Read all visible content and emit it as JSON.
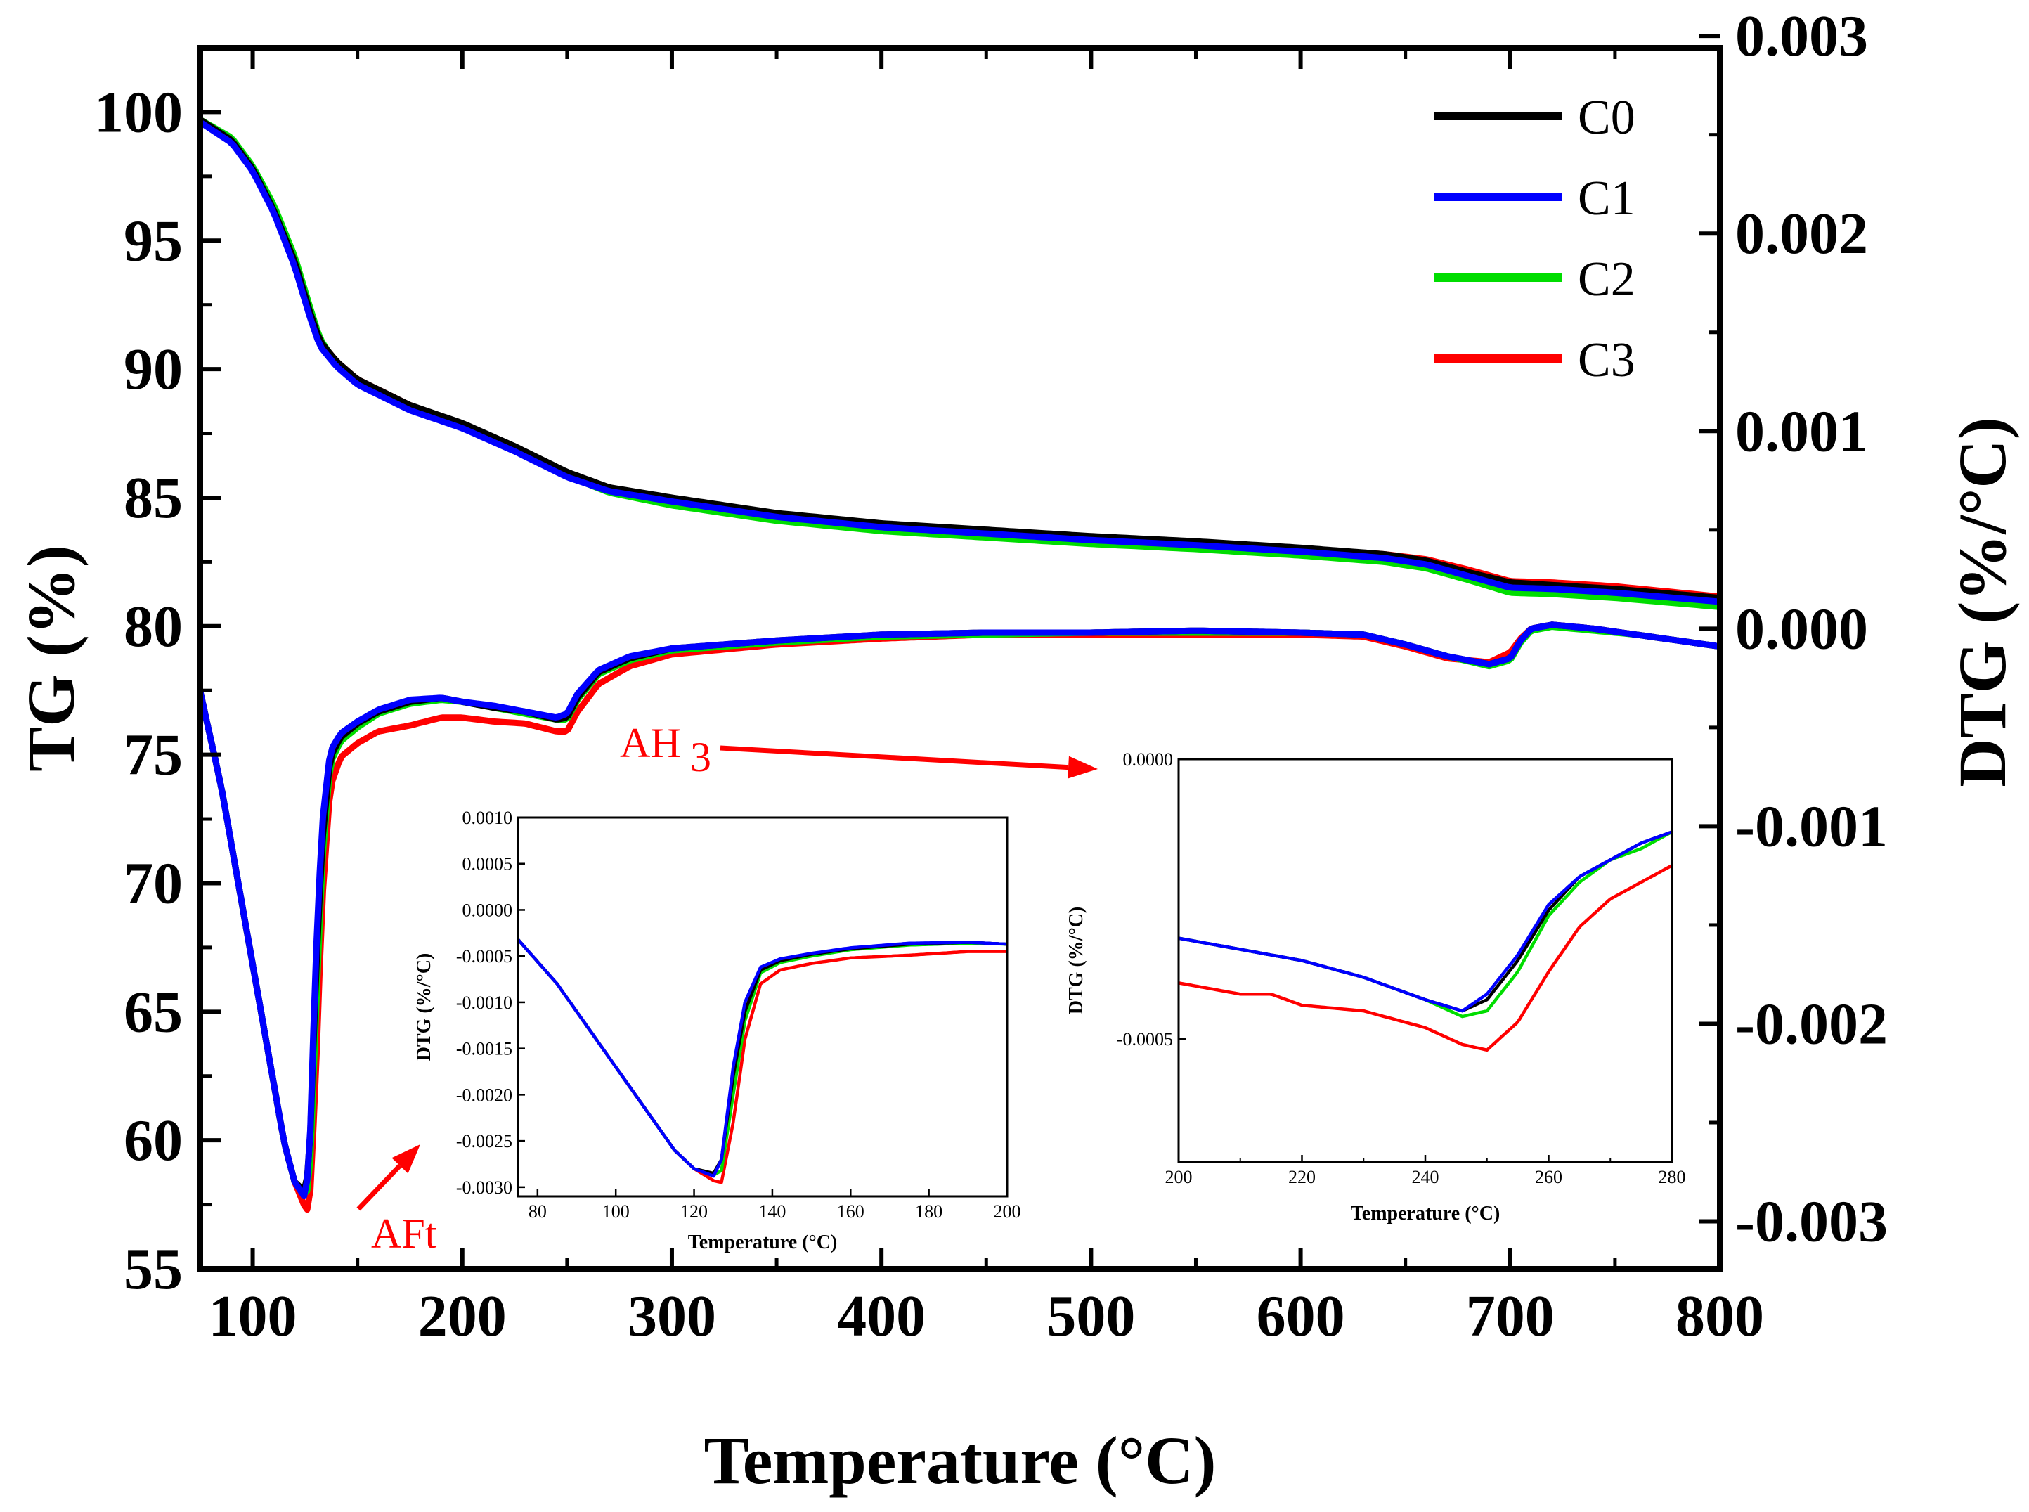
{
  "chart_data": [
    {
      "type": "line",
      "name": "main",
      "xlabel": "Temperature (°C)",
      "ylabel": "TG (%)",
      "y2label": "DTG (%/°C)",
      "xlim": [
        75,
        800
      ],
      "ylim": [
        55,
        102.5
      ],
      "y2lim": [
        -0.00324,
        0.00294
      ],
      "xticks": [
        100,
        200,
        300,
        400,
        500,
        600,
        700,
        800
      ],
      "yticks": [
        55,
        60,
        65,
        70,
        75,
        80,
        85,
        90,
        95,
        100
      ],
      "y2ticks": [
        -0.003,
        -0.002,
        -0.001,
        0.0,
        0.001,
        0.002,
        0.003
      ],
      "y2ticklabels": [
        "-0.003",
        "-0.002",
        "-0.001",
        "0.000",
        "0.001",
        "0.002",
        "0.003"
      ],
      "legend": {
        "position": "top-right",
        "entries": [
          "C0",
          "C1",
          "C2",
          "C3"
        ]
      },
      "colors": {
        "C0": "#000000",
        "C1": "#0000ff",
        "C2": "#00dd00",
        "C3": "#ff0000"
      },
      "annotations": [
        {
          "text": "AFt",
          "points_to_x": 180,
          "points_to_y_dtg": -0.0025
        },
        {
          "text": "AH",
          "subscript": "3",
          "points_to_inset": "right"
        }
      ],
      "tg_series": [
        {
          "name": "C0",
          "x": [
            75,
            90,
            100,
            110,
            120,
            127,
            132,
            140,
            150,
            175,
            200,
            225,
            250,
            270,
            300,
            350,
            400,
            450,
            500,
            550,
            600,
            640,
            660,
            680,
            700,
            720,
            750,
            800
          ],
          "values": [
            99.7,
            98.9,
            97.8,
            96.2,
            94.2,
            92.3,
            91.1,
            90.3,
            89.6,
            88.6,
            87.9,
            87.0,
            86.0,
            85.4,
            85.0,
            84.4,
            84.0,
            83.75,
            83.5,
            83.3,
            83.05,
            82.8,
            82.55,
            82.1,
            81.7,
            81.6,
            81.45,
            81.1
          ]
        },
        {
          "name": "C1",
          "x": [
            75,
            90,
            100,
            110,
            120,
            127,
            132,
            140,
            150,
            175,
            200,
            225,
            250,
            270,
            300,
            350,
            400,
            450,
            500,
            550,
            600,
            640,
            660,
            680,
            700,
            720,
            750,
            800
          ],
          "values": [
            99.6,
            98.8,
            97.7,
            96.1,
            94.0,
            92.1,
            90.9,
            90.1,
            89.4,
            88.4,
            87.7,
            86.8,
            85.8,
            85.25,
            84.85,
            84.25,
            83.85,
            83.6,
            83.35,
            83.15,
            82.9,
            82.65,
            82.4,
            81.95,
            81.5,
            81.45,
            81.3,
            80.95
          ]
        },
        {
          "name": "C2",
          "x": [
            75,
            90,
            100,
            110,
            120,
            127,
            132,
            140,
            150,
            175,
            200,
            225,
            250,
            270,
            300,
            350,
            400,
            450,
            500,
            550,
            600,
            640,
            660,
            680,
            700,
            720,
            750,
            800
          ],
          "values": [
            99.7,
            99.0,
            97.9,
            96.4,
            94.4,
            92.5,
            91.2,
            90.2,
            89.5,
            88.5,
            87.8,
            86.9,
            85.85,
            85.2,
            84.7,
            84.1,
            83.7,
            83.45,
            83.2,
            83.0,
            82.75,
            82.5,
            82.25,
            81.8,
            81.3,
            81.25,
            81.1,
            80.75
          ]
        },
        {
          "name": "C3",
          "x": [
            75,
            90,
            100,
            110,
            120,
            127,
            132,
            140,
            150,
            175,
            200,
            225,
            250,
            270,
            300,
            350,
            400,
            450,
            500,
            550,
            600,
            640,
            660,
            680,
            700,
            720,
            750,
            800
          ],
          "values": [
            99.7,
            98.9,
            97.8,
            96.2,
            94.2,
            92.3,
            91.1,
            90.3,
            89.6,
            88.6,
            87.85,
            86.95,
            85.95,
            85.35,
            84.95,
            84.35,
            83.95,
            83.7,
            83.45,
            83.25,
            83.0,
            82.8,
            82.6,
            82.2,
            81.75,
            81.7,
            81.55,
            81.15
          ]
        }
      ],
      "dtg_series": [
        {
          "name": "C0",
          "x": [
            75,
            85,
            95,
            105,
            110,
            115,
            120,
            125,
            127,
            130,
            133,
            137,
            142,
            150,
            160,
            175,
            190,
            200,
            215,
            230,
            245,
            250,
            255,
            265,
            280,
            300,
            350,
            400,
            450,
            500,
            550,
            600,
            630,
            650,
            670,
            690,
            700,
            705,
            710,
            720,
            740,
            760,
            780,
            800
          ],
          "values": [
            -0.00032,
            -0.0008,
            -0.0014,
            -0.002,
            -0.0023,
            -0.0026,
            -0.0028,
            -0.00285,
            -0.0027,
            -0.0018,
            -0.0011,
            -0.00065,
            -0.00055,
            -0.00048,
            -0.00042,
            -0.00037,
            -0.00035,
            -0.00037,
            -0.0004,
            -0.00042,
            -0.00046,
            -0.00045,
            -0.00035,
            -0.00022,
            -0.00015,
            -0.0001,
            -6e-05,
            -3e-05,
            -2e-05,
            -2e-05,
            -1e-05,
            -2e-05,
            -3e-05,
            -8e-05,
            -0.00014,
            -0.00018,
            -0.00015,
            -6e-05,
            0.0,
            2e-05,
            0.0,
            -3e-05,
            -6e-05,
            -9e-05
          ]
        },
        {
          "name": "C1",
          "x": [
            75,
            85,
            95,
            105,
            110,
            115,
            120,
            125,
            127,
            130,
            133,
            137,
            142,
            150,
            160,
            175,
            190,
            200,
            215,
            230,
            245,
            250,
            255,
            265,
            280,
            300,
            350,
            400,
            450,
            500,
            550,
            600,
            630,
            650,
            670,
            690,
            700,
            705,
            710,
            720,
            740,
            760,
            780,
            800
          ],
          "values": [
            -0.00032,
            -0.0008,
            -0.0014,
            -0.002,
            -0.0023,
            -0.0026,
            -0.0028,
            -0.00288,
            -0.0027,
            -0.0017,
            -0.001,
            -0.00062,
            -0.00053,
            -0.00047,
            -0.00041,
            -0.00036,
            -0.00035,
            -0.00037,
            -0.00039,
            -0.00042,
            -0.00045,
            -0.00043,
            -0.00033,
            -0.00021,
            -0.00014,
            -0.0001,
            -6e-05,
            -3e-05,
            -2e-05,
            -2e-05,
            -1e-05,
            -2e-05,
            -3e-05,
            -8e-05,
            -0.00014,
            -0.00018,
            -0.00015,
            -6e-05,
            0.0,
            2e-05,
            0.0,
            -3e-05,
            -6e-05,
            -9e-05
          ]
        },
        {
          "name": "C2",
          "x": [
            75,
            85,
            95,
            105,
            110,
            115,
            120,
            125,
            127,
            130,
            133,
            137,
            142,
            150,
            160,
            175,
            190,
            200,
            215,
            230,
            245,
            250,
            255,
            265,
            280,
            300,
            350,
            400,
            450,
            500,
            550,
            600,
            630,
            650,
            670,
            690,
            700,
            705,
            710,
            720,
            740,
            760,
            780,
            800
          ],
          "values": [
            -0.00032,
            -0.0008,
            -0.0014,
            -0.002,
            -0.0023,
            -0.0026,
            -0.0028,
            -0.00287,
            -0.00282,
            -0.002,
            -0.0012,
            -0.00068,
            -0.00057,
            -0.0005,
            -0.00043,
            -0.00038,
            -0.00036,
            -0.00037,
            -0.0004,
            -0.00043,
            -0.00046,
            -0.00046,
            -0.00036,
            -0.00023,
            -0.00016,
            -0.00011,
            -7e-05,
            -4e-05,
            -3e-05,
            -2e-05,
            -2e-05,
            -2e-05,
            -3e-05,
            -8e-05,
            -0.00014,
            -0.00019,
            -0.00016,
            -7e-05,
            -1e-05,
            1e-05,
            -1e-05,
            -3e-05,
            -6e-05,
            -9e-05
          ]
        },
        {
          "name": "C3",
          "x": [
            75,
            85,
            95,
            105,
            110,
            115,
            120,
            125,
            127,
            130,
            133,
            137,
            142,
            150,
            160,
            175,
            190,
            200,
            215,
            230,
            245,
            250,
            255,
            265,
            280,
            300,
            350,
            400,
            450,
            500,
            550,
            600,
            630,
            650,
            670,
            690,
            700,
            705,
            710,
            720,
            740,
            760,
            780,
            800
          ],
          "values": [
            -0.00032,
            -0.0008,
            -0.0014,
            -0.002,
            -0.0023,
            -0.0026,
            -0.0028,
            -0.00293,
            -0.00295,
            -0.0023,
            -0.0014,
            -0.0008,
            -0.00065,
            -0.00058,
            -0.00052,
            -0.00049,
            -0.00045,
            -0.00045,
            -0.00047,
            -0.00048,
            -0.00052,
            -0.00052,
            -0.00042,
            -0.00028,
            -0.00019,
            -0.00013,
            -8e-05,
            -5e-05,
            -3e-05,
            -3e-05,
            -3e-05,
            -3e-05,
            -4e-05,
            -9e-05,
            -0.00015,
            -0.00017,
            -0.00012,
            -5e-05,
            0.0,
            2e-05,
            0.0,
            -3e-05,
            -6e-05,
            -9e-05
          ]
        }
      ]
    },
    {
      "type": "line",
      "name": "inset-1",
      "xlabel": "Temperature (°C)",
      "ylabel": "DTG (%/°C)",
      "xlim": [
        75,
        200
      ],
      "ylim": [
        -0.0031,
        0.001
      ],
      "xticks": [
        80,
        100,
        120,
        140,
        160,
        180,
        200
      ],
      "yticks": [
        0.001,
        0.0005,
        0.0,
        -0.0005,
        -0.001,
        -0.0015,
        -0.002,
        -0.0025,
        -0.003
      ],
      "yticklabels": [
        "0.0010",
        "0.0005",
        "0.0000",
        "-0.0005",
        "-0.0010",
        "-0.0015",
        "-0.0020",
        "-0.0025",
        "-0.0030"
      ],
      "zoom_of": "main dtg_series 75–200 °C"
    },
    {
      "type": "line",
      "name": "inset-2",
      "xlabel": "Temperature (°C)",
      "ylabel": "DTG (%/°C)",
      "xlim": [
        200,
        280
      ],
      "ylim": [
        -0.00072,
        0.0
      ],
      "xticks": [
        200,
        220,
        240,
        260,
        280
      ],
      "yticks": [
        0.0,
        -0.0005
      ],
      "yticklabels": [
        "0.0000",
        "-0.0005"
      ],
      "series": [
        {
          "name": "C0",
          "x": [
            200,
            210,
            220,
            230,
            240,
            246,
            250,
            255,
            260,
            265,
            270,
            275,
            280
          ],
          "values": [
            -0.00032,
            -0.00034,
            -0.00036,
            -0.00039,
            -0.00043,
            -0.00045,
            -0.00043,
            -0.00036,
            -0.00027,
            -0.00021,
            -0.00018,
            -0.00015,
            -0.00013
          ]
        },
        {
          "name": "C1",
          "x": [
            200,
            210,
            220,
            230,
            240,
            246,
            250,
            255,
            260,
            265,
            270,
            275,
            280
          ],
          "values": [
            -0.00032,
            -0.00034,
            -0.00036,
            -0.00039,
            -0.00043,
            -0.00045,
            -0.00042,
            -0.00035,
            -0.00026,
            -0.00021,
            -0.00018,
            -0.00015,
            -0.00013
          ]
        },
        {
          "name": "C2",
          "x": [
            200,
            210,
            220,
            230,
            240,
            246,
            250,
            255,
            260,
            265,
            270,
            275,
            280
          ],
          "values": [
            -0.00032,
            -0.00034,
            -0.00036,
            -0.00039,
            -0.00043,
            -0.00046,
            -0.00045,
            -0.00038,
            -0.00028,
            -0.00022,
            -0.00018,
            -0.00016,
            -0.00013
          ]
        },
        {
          "name": "C3",
          "x": [
            200,
            210,
            215,
            220,
            230,
            240,
            246,
            250,
            255,
            260,
            265,
            270,
            275,
            280
          ],
          "values": [
            -0.0004,
            -0.00042,
            -0.00042,
            -0.00044,
            -0.00045,
            -0.00048,
            -0.00051,
            -0.00052,
            -0.00047,
            -0.00038,
            -0.0003,
            -0.00025,
            -0.00022,
            -0.00019
          ]
        }
      ]
    }
  ]
}
